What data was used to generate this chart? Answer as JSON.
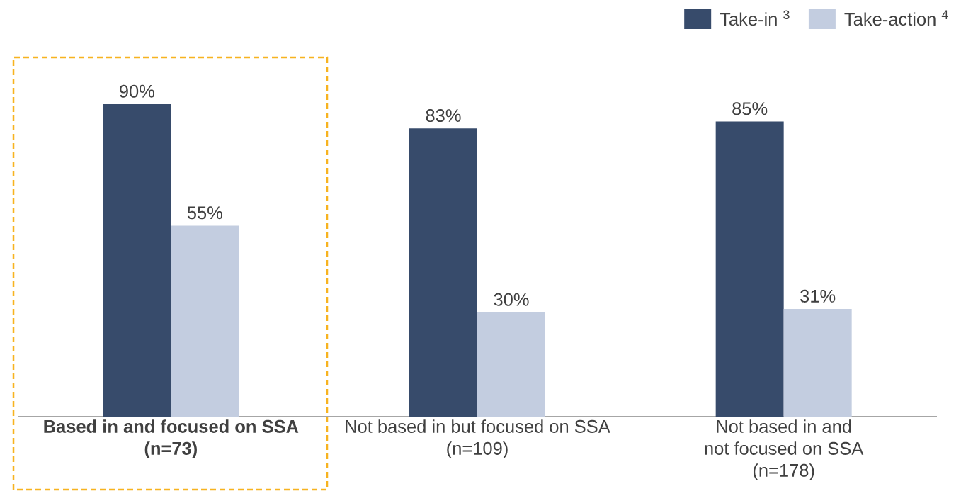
{
  "chart_data": {
    "type": "bar",
    "categories": [
      "**Based in and focused on SSA\n(n=73)**",
      "Not based in but focused on SSA\n(n=109)",
      "Not based in and\nnot focused on SSA\n(n=178)"
    ],
    "series": [
      {
        "name": "Take-in $^{3}$",
        "color": "#374b6b",
        "values": [
          90,
          83,
          85
        ],
        "value_labels": [
          "90%",
          "83%",
          "85%"
        ]
      },
      {
        "name": "Take-action $^{4}$",
        "color": "#c3cde0",
        "values": [
          55,
          30,
          31
        ],
        "value_labels": [
          "55%",
          "30%",
          "31%"
        ]
      }
    ],
    "tick_labels": "x",
    "legend": "top right"
  }
}
